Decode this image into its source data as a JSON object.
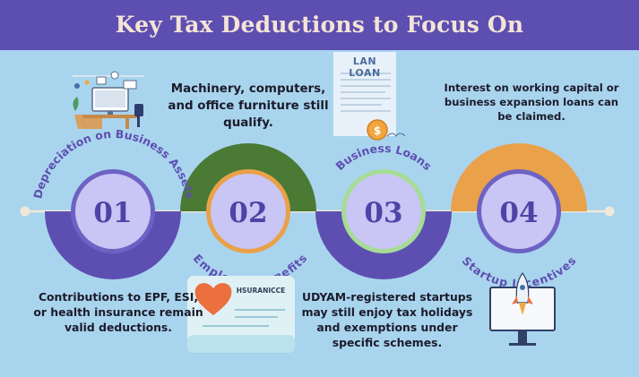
{
  "header": {
    "title": "Key Tax Deductions to Focus On"
  },
  "steps": [
    {
      "number": "01",
      "label": "Depreciation on Business Assets"
    },
    {
      "number": "02",
      "label": "Employee Benefits"
    },
    {
      "number": "03",
      "label": "Business Loans"
    },
    {
      "number": "04",
      "label": "Startup Incentives"
    }
  ],
  "descriptions": {
    "machinery": "Machinery, computers, and office furniture still qualify.",
    "interest": "Interest on working capital or business expansion loans can be claimed.",
    "contributions": "Contributions to EPF, ESI, or health insurance remain valid deductions.",
    "udyam": "UDYAM-registered startups may still enjoy tax holidays and exemptions under specific schemes."
  },
  "illustrations": {
    "loan_document_title": "LAN LOAN",
    "coin_symbol": "$",
    "insurance_card_title": "HSURANICCE"
  },
  "colors": {
    "header": "#5d4fb1",
    "background": "#a9d4ee",
    "title_text": "#f4e4d6",
    "circle_fill": "#c9c5f4",
    "number_text": "#4e44a6",
    "arc_purple": "#5d4fb1",
    "arc_green": "#4a7a33",
    "arc_orange": "#e9a14a",
    "ring_purple": "#6d62c4",
    "ring_orange": "#e9a14a",
    "ring_green": "#a6dc95",
    "label_text": "#5d4fb1"
  },
  "icons": [
    "office-desk-icon",
    "loan-document-icon",
    "coin-icon",
    "heart-icon",
    "insurance-card-icon",
    "rocket-monitor-icon"
  ]
}
